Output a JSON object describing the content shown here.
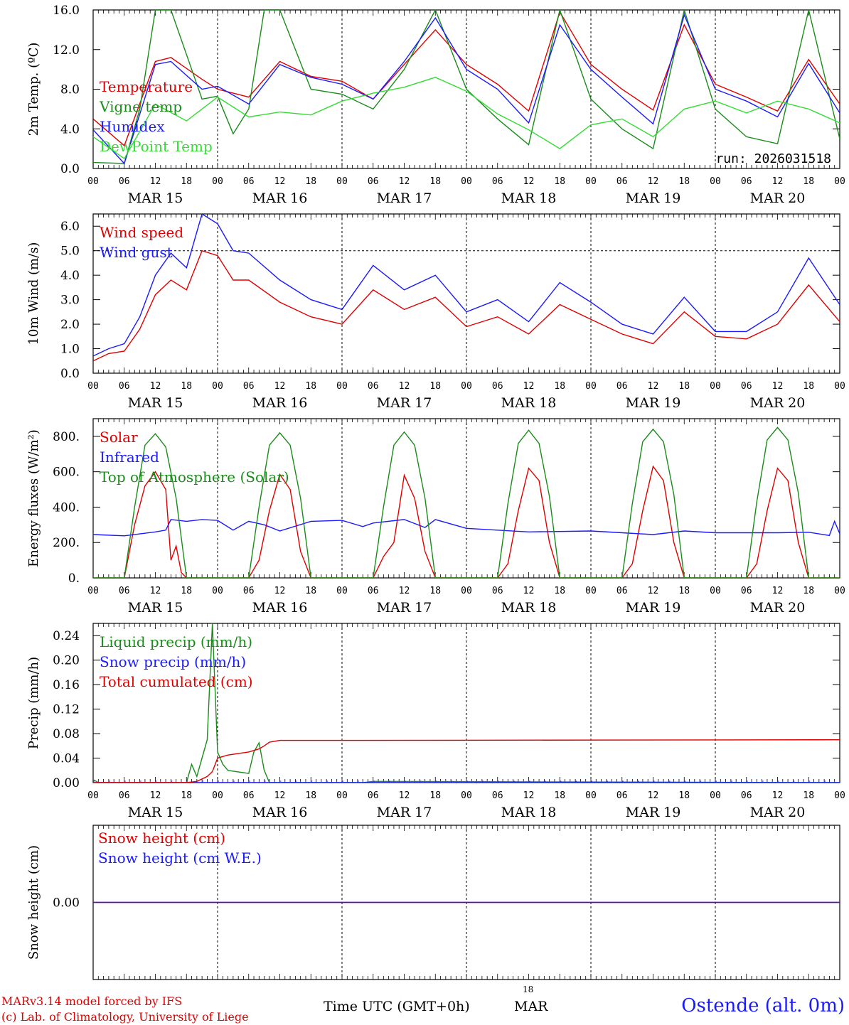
{
  "colors": {
    "red": "#e00000",
    "green": "#1a8c1a",
    "blue": "#1a1aff",
    "lightgreen": "#33dd33",
    "black": "#000000"
  },
  "xaxis": {
    "hour_labels": [
      "00",
      "06",
      "12",
      "18",
      "00",
      "06",
      "12",
      "18",
      "00",
      "06",
      "12",
      "18",
      "00",
      "06",
      "12",
      "18",
      "00",
      "06",
      "12",
      "18",
      "00",
      "06",
      "12",
      "18",
      "00"
    ],
    "day_labels": [
      "MAR 15",
      "MAR 16",
      "MAR 17",
      "MAR 18",
      "MAR 19",
      "MAR 20"
    ]
  },
  "footer": {
    "model": "MARv3.14 model forced by IFS",
    "lab": "(c) Lab. of Climatology, University of Liege",
    "time_label": "Time UTC (GMT+0h)",
    "mar_label": "MAR",
    "mar_hour": "18",
    "station": "Ostende (alt. 0m)"
  },
  "chart_data": [
    {
      "type": "line",
      "ylabel": "2m Temp. (ºC)",
      "ylim": [
        0,
        16
      ],
      "yticks": [
        0,
        4,
        8,
        12,
        16
      ],
      "ytick_labels": [
        "0.0",
        "4.0",
        "8.0",
        "12.0",
        "16.0"
      ],
      "annotation": "run: 2026031518",
      "series": [
        {
          "name": "Temperature",
          "color": "red",
          "x": [
            0,
            6,
            12,
            15,
            21,
            24,
            30,
            36,
            42,
            48,
            54,
            60,
            66,
            72,
            78,
            84,
            90,
            96,
            102,
            108,
            114,
            120,
            126,
            132,
            138,
            144
          ],
          "values": [
            5.0,
            2.3,
            10.8,
            11.2,
            9.0,
            8.0,
            7.2,
            10.8,
            9.3,
            8.8,
            7.0,
            10.5,
            14.0,
            10.5,
            8.5,
            5.8,
            15.8,
            10.5,
            8.0,
            5.9,
            14.5,
            8.5,
            7.2,
            5.8,
            11.0,
            6.5
          ]
        },
        {
          "name": "Vigne temp",
          "color": "green",
          "x": [
            0,
            6,
            9,
            12,
            15,
            21,
            24,
            27,
            30,
            33,
            36,
            42,
            48,
            54,
            60,
            66,
            72,
            78,
            84,
            90,
            96,
            102,
            108,
            114,
            120,
            126,
            132,
            138,
            144
          ],
          "values": [
            0.6,
            0.5,
            6.0,
            16.0,
            16.0,
            7.0,
            7.3,
            3.5,
            6.0,
            16.0,
            16.0,
            8.0,
            7.5,
            6.0,
            10.0,
            16.0,
            8.0,
            5.0,
            2.4,
            16.0,
            7.0,
            4.0,
            2.0,
            16.0,
            6.0,
            3.2,
            2.5,
            16.0,
            3.0
          ]
        },
        {
          "name": "Humidex",
          "color": "blue",
          "x": [
            0,
            6,
            12,
            15,
            21,
            24,
            30,
            36,
            42,
            48,
            54,
            60,
            66,
            72,
            78,
            84,
            90,
            96,
            102,
            108,
            114,
            120,
            126,
            132,
            138,
            144
          ],
          "values": [
            3.9,
            0.5,
            10.5,
            10.8,
            8.0,
            8.3,
            6.5,
            10.5,
            9.2,
            8.5,
            7.0,
            10.8,
            15.2,
            10.0,
            8.0,
            4.6,
            14.5,
            10.0,
            7.2,
            4.5,
            15.5,
            8.0,
            6.8,
            5.2,
            10.6,
            5.6
          ]
        },
        {
          "name": "DewPoint Temp",
          "color": "lightgreen",
          "x": [
            0,
            6,
            12,
            18,
            24,
            30,
            36,
            42,
            48,
            54,
            60,
            66,
            72,
            78,
            84,
            90,
            96,
            102,
            108,
            114,
            120,
            126,
            132,
            138,
            144
          ],
          "values": [
            3.2,
            1.0,
            6.5,
            4.8,
            7.2,
            5.2,
            5.7,
            5.4,
            6.8,
            7.6,
            8.2,
            9.2,
            7.8,
            5.5,
            3.9,
            2.0,
            4.4,
            5.0,
            3.2,
            6.0,
            6.8,
            5.6,
            6.8,
            6.0,
            4.6
          ]
        }
      ]
    },
    {
      "type": "line",
      "ylabel": "10m Wind (m/s)",
      "ylim": [
        0,
        6.5
      ],
      "yticks": [
        0,
        1,
        2,
        3,
        4,
        5,
        6
      ],
      "ytick_labels": [
        "0.0",
        "1.0",
        "2.0",
        "3.0",
        "4.0",
        "5.0",
        "6.0"
      ],
      "hline": 5.0,
      "series": [
        {
          "name": "Wind speed",
          "color": "red",
          "x": [
            0,
            3,
            6,
            9,
            12,
            15,
            18,
            21,
            24,
            27,
            30,
            36,
            42,
            48,
            54,
            60,
            66,
            72,
            78,
            84,
            90,
            96,
            102,
            108,
            114,
            120,
            126,
            132,
            138,
            144
          ],
          "values": [
            0.5,
            0.8,
            0.9,
            1.8,
            3.2,
            3.8,
            3.4,
            5.0,
            4.8,
            3.8,
            3.8,
            2.9,
            2.3,
            2.0,
            3.4,
            2.6,
            3.1,
            1.9,
            2.3,
            1.6,
            2.8,
            2.2,
            1.6,
            1.2,
            2.5,
            1.5,
            1.4,
            2.0,
            3.6,
            2.1
          ]
        },
        {
          "name": "Wind gust",
          "color": "blue",
          "x": [
            0,
            3,
            6,
            9,
            12,
            15,
            18,
            21,
            24,
            27,
            30,
            36,
            42,
            48,
            54,
            60,
            66,
            72,
            78,
            84,
            90,
            96,
            102,
            108,
            114,
            120,
            126,
            132,
            138,
            144
          ],
          "values": [
            0.7,
            1.0,
            1.2,
            2.3,
            4.0,
            4.9,
            4.3,
            6.5,
            6.1,
            5.0,
            4.9,
            3.8,
            3.0,
            2.6,
            4.4,
            3.4,
            4.0,
            2.5,
            3.0,
            2.1,
            3.7,
            2.9,
            2.0,
            1.6,
            3.1,
            1.7,
            1.7,
            2.5,
            4.7,
            2.8
          ]
        }
      ]
    },
    {
      "type": "line",
      "ylabel": "Energy fluxes (W/m²)",
      "ylim": [
        0,
        900
      ],
      "yticks": [
        0,
        200,
        400,
        600,
        800
      ],
      "ytick_labels": [
        "0.",
        "200.",
        "400.",
        "600.",
        "800."
      ],
      "series": [
        {
          "name": "Solar",
          "color": "red",
          "x": [
            0,
            6,
            8,
            10,
            12,
            14,
            15,
            16,
            17,
            18,
            30,
            32,
            34,
            36,
            38,
            40,
            42,
            54,
            56,
            58,
            60,
            62,
            64,
            66,
            78,
            80,
            82,
            84,
            86,
            88,
            90,
            102,
            104,
            106,
            108,
            110,
            112,
            114,
            126,
            128,
            130,
            132,
            134,
            136,
            138,
            144
          ],
          "values": [
            0,
            0,
            300,
            520,
            600,
            500,
            100,
            180,
            30,
            0,
            0,
            100,
            380,
            585,
            500,
            150,
            0,
            0,
            120,
            200,
            580,
            450,
            150,
            0,
            0,
            80,
            380,
            620,
            550,
            200,
            0,
            0,
            80,
            380,
            630,
            550,
            200,
            0,
            0,
            80,
            380,
            620,
            550,
            200,
            0,
            0
          ]
        },
        {
          "name": "Infrared",
          "color": "blue",
          "x": [
            0,
            6,
            12,
            14,
            15,
            18,
            21,
            24,
            27,
            30,
            33,
            36,
            42,
            48,
            52,
            54,
            60,
            64,
            66,
            72,
            84,
            96,
            108,
            114,
            120,
            132,
            138,
            142,
            143,
            144
          ],
          "values": [
            245,
            238,
            260,
            270,
            330,
            320,
            330,
            325,
            270,
            320,
            300,
            265,
            320,
            325,
            290,
            310,
            330,
            285,
            330,
            280,
            260,
            265,
            245,
            265,
            255,
            255,
            258,
            240,
            320,
            250
          ]
        },
        {
          "name": "Top of Atmosphere (Solar)",
          "color": "green",
          "x": [
            0,
            6,
            8,
            10,
            12,
            14,
            16,
            18,
            30,
            32,
            34,
            36,
            38,
            40,
            42,
            54,
            56,
            58,
            60,
            62,
            64,
            66,
            78,
            80,
            82,
            84,
            86,
            88,
            90,
            102,
            104,
            106,
            108,
            110,
            112,
            114,
            126,
            128,
            130,
            132,
            134,
            136,
            138,
            144
          ],
          "values": [
            0,
            0,
            400,
            750,
            815,
            740,
            450,
            0,
            0,
            400,
            750,
            820,
            750,
            450,
            0,
            0,
            400,
            750,
            825,
            750,
            450,
            0,
            0,
            420,
            760,
            835,
            760,
            460,
            0,
            0,
            420,
            770,
            840,
            770,
            470,
            0,
            0,
            430,
            780,
            850,
            780,
            480,
            0,
            0
          ]
        }
      ]
    },
    {
      "type": "line",
      "ylabel": "Precip (mm/h)",
      "ylim": [
        0,
        0.26
      ],
      "yticks": [
        0,
        0.04,
        0.08,
        0.12,
        0.16,
        0.2,
        0.24
      ],
      "ytick_labels": [
        "0.00",
        "0.04",
        "0.08",
        "0.12",
        "0.16",
        "0.20",
        "0.24"
      ],
      "series": [
        {
          "name": "Liquid precip (mm/h)",
          "color": "green",
          "x": [
            0,
            1,
            18,
            19,
            20,
            21,
            22,
            23,
            24,
            25,
            26,
            30,
            31,
            32,
            33,
            34,
            36,
            37,
            48,
            52,
            54,
            144
          ],
          "values": [
            0.005,
            0.0,
            0.0,
            0.03,
            0.01,
            0.04,
            0.07,
            0.26,
            0.05,
            0.03,
            0.02,
            0.015,
            0.05,
            0.065,
            0.02,
            0.0,
            0.0,
            0.0,
            0.0,
            0.0,
            0.002,
            0.0
          ]
        },
        {
          "name": "Snow precip (mm/h)",
          "color": "blue",
          "x": [
            0,
            144
          ],
          "values": [
            0.0,
            0.0
          ]
        },
        {
          "name": "Total cumulated (cm)",
          "color": "red",
          "x": [
            0,
            18,
            20,
            22,
            23,
            24,
            26,
            30,
            32,
            33,
            34,
            36,
            48,
            144
          ],
          "values": [
            0.0,
            0.0,
            0.002,
            0.01,
            0.018,
            0.04,
            0.045,
            0.05,
            0.055,
            0.06,
            0.066,
            0.069,
            0.069,
            0.07
          ]
        }
      ]
    },
    {
      "type": "line",
      "ylabel": "Snow height (cm)",
      "ylim": [
        -1,
        1
      ],
      "yticks": [
        0
      ],
      "ytick_labels": [
        "0.00"
      ],
      "series": [
        {
          "name": "Snow height (cm)",
          "color": "red",
          "x": [
            0,
            144
          ],
          "values": [
            0,
            0
          ]
        },
        {
          "name": "Snow height (cm W.E.)",
          "color": "blue",
          "x": [
            0,
            144
          ],
          "values": [
            0,
            0
          ]
        }
      ]
    }
  ]
}
